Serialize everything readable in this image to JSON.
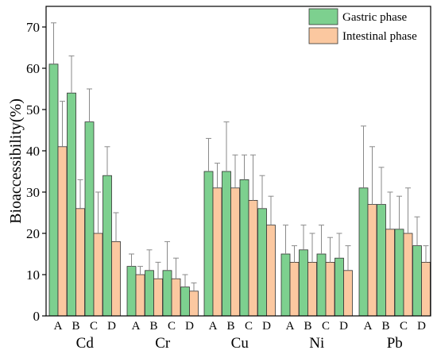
{
  "chart_data": {
    "type": "bar",
    "ylabel": "Bioaccessibility(%)",
    "ylim": [
      0,
      75
    ],
    "yticks": [
      0,
      10,
      20,
      30,
      40,
      50,
      60,
      70
    ],
    "grid": false,
    "legend_position": "top-right",
    "groups": [
      "Cd",
      "Cr",
      "Cu",
      "Ni",
      "Pb"
    ],
    "categories": [
      "A",
      "B",
      "C",
      "D"
    ],
    "series": [
      {
        "name": "Gastric phase",
        "color": "#7dd08f",
        "values": [
          [
            61,
            54,
            47,
            34
          ],
          [
            12,
            11,
            11,
            7
          ],
          [
            35,
            35,
            33,
            26
          ],
          [
            15,
            16,
            15,
            14
          ],
          [
            31,
            27,
            21,
            17
          ]
        ],
        "errors": [
          [
            10,
            9,
            8,
            7
          ],
          [
            3,
            5,
            7,
            3
          ],
          [
            8,
            12,
            6,
            8
          ],
          [
            7,
            6,
            7,
            6
          ],
          [
            15,
            9,
            8,
            7
          ]
        ]
      },
      {
        "name": "Intestinal phase",
        "color": "#fbc8a0",
        "values": [
          [
            41,
            26,
            20,
            18
          ],
          [
            10,
            9,
            9,
            6
          ],
          [
            31,
            31,
            28,
            22
          ],
          [
            13,
            13,
            13,
            11
          ],
          [
            27,
            21,
            20,
            13
          ]
        ],
        "errors": [
          [
            11,
            7,
            10,
            7
          ],
          [
            2,
            4,
            5,
            2
          ],
          [
            6,
            8,
            11,
            7
          ],
          [
            4,
            7,
            6,
            6
          ],
          [
            14,
            9,
            11,
            4
          ]
        ]
      }
    ]
  }
}
